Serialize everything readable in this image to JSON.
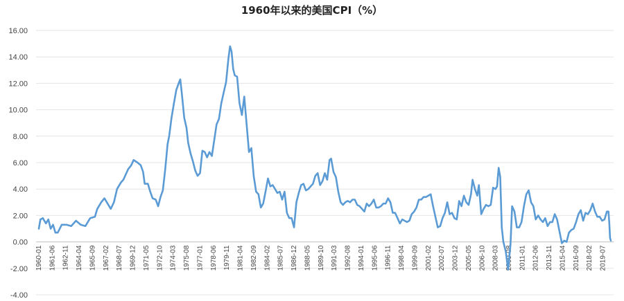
{
  "chart_data": {
    "type": "line",
    "title": "1960年以来的美国CPI（%）",
    "xlabel": "",
    "ylabel": "",
    "ylim": [
      -4,
      16
    ],
    "y_ticks": [
      "-4.00",
      "-2.00",
      "0.00",
      "2.00",
      "4.00",
      "6.00",
      "8.00",
      "10.00",
      "12.00",
      "14.00",
      "16.00"
    ],
    "x_tick_labels": [
      "1960-01",
      "1961-06",
      "1962-11",
      "1964-04",
      "1965-09",
      "1967-02",
      "1968-07",
      "1969-12",
      "1971-05",
      "1972-10",
      "1974-03",
      "1975-08",
      "1977-01",
      "1978-06",
      "1979-11",
      "1981-04",
      "1982-09",
      "1984-02",
      "1985-07",
      "1986-12",
      "1988-05",
      "1989-10",
      "1991-03",
      "1992-08",
      "1994-01",
      "1995-06",
      "1996-11",
      "1998-04",
      "1999-09",
      "2001-02",
      "2002-07",
      "2003-12",
      "2005-05",
      "2006-10",
      "2008-03",
      "2009-08",
      "2011-01",
      "2012-06",
      "2013-11",
      "2015-04",
      "2016-09",
      "2018-02",
      "2019-07"
    ],
    "grid": true,
    "legend": "none",
    "series": [
      {
        "color": "#5b9bd5",
        "points": [
          [
            "1960-01",
            1.0
          ],
          [
            "1960-03",
            1.7
          ],
          [
            "1960-06",
            1.8
          ],
          [
            "1960-10",
            1.4
          ],
          [
            "1961-01",
            1.7
          ],
          [
            "1961-04",
            1.0
          ],
          [
            "1961-07",
            1.3
          ],
          [
            "1961-10",
            0.7
          ],
          [
            "1962-01",
            0.7
          ],
          [
            "1962-06",
            1.3
          ],
          [
            "1962-12",
            1.3
          ],
          [
            "1963-06",
            1.2
          ],
          [
            "1963-12",
            1.6
          ],
          [
            "1964-06",
            1.3
          ],
          [
            "1964-12",
            1.2
          ],
          [
            "1965-06",
            1.8
          ],
          [
            "1965-12",
            1.9
          ],
          [
            "1966-03",
            2.5
          ],
          [
            "1966-08",
            3.0
          ],
          [
            "1966-12",
            3.3
          ],
          [
            "1967-05",
            2.8
          ],
          [
            "1967-08",
            2.5
          ],
          [
            "1967-12",
            3.0
          ],
          [
            "1968-04",
            4.0
          ],
          [
            "1968-09",
            4.5
          ],
          [
            "1968-12",
            4.7
          ],
          [
            "1969-06",
            5.5
          ],
          [
            "1969-10",
            5.8
          ],
          [
            "1970-01",
            6.2
          ],
          [
            "1970-06",
            6.0
          ],
          [
            "1970-10",
            5.8
          ],
          [
            "1971-01",
            5.3
          ],
          [
            "1971-03",
            4.4
          ],
          [
            "1971-07",
            4.4
          ],
          [
            "1971-10",
            3.8
          ],
          [
            "1972-01",
            3.3
          ],
          [
            "1972-05",
            3.2
          ],
          [
            "1972-08",
            2.7
          ],
          [
            "1972-11",
            3.4
          ],
          [
            "1973-02",
            3.9
          ],
          [
            "1973-05",
            5.5
          ],
          [
            "1973-08",
            7.4
          ],
          [
            "1973-10",
            8.0
          ],
          [
            "1974-01",
            9.4
          ],
          [
            "1974-04",
            10.5
          ],
          [
            "1974-07",
            11.5
          ],
          [
            "1974-10",
            12.0
          ],
          [
            "1974-12",
            12.3
          ],
          [
            "1975-02",
            11.2
          ],
          [
            "1975-05",
            9.4
          ],
          [
            "1975-08",
            8.6
          ],
          [
            "1975-10",
            7.5
          ],
          [
            "1976-01",
            6.7
          ],
          [
            "1976-04",
            6.1
          ],
          [
            "1976-07",
            5.4
          ],
          [
            "1976-10",
            5.0
          ],
          [
            "1977-01",
            5.2
          ],
          [
            "1977-04",
            6.9
          ],
          [
            "1977-07",
            6.8
          ],
          [
            "1977-10",
            6.4
          ],
          [
            "1978-01",
            6.8
          ],
          [
            "1978-04",
            6.5
          ],
          [
            "1978-07",
            7.7
          ],
          [
            "1978-10",
            8.9
          ],
          [
            "1979-01",
            9.3
          ],
          [
            "1979-04",
            10.5
          ],
          [
            "1979-07",
            11.3
          ],
          [
            "1979-10",
            12.1
          ],
          [
            "1980-01",
            13.9
          ],
          [
            "1980-03",
            14.8
          ],
          [
            "1980-05",
            14.4
          ],
          [
            "1980-07",
            13.1
          ],
          [
            "1980-09",
            12.6
          ],
          [
            "1980-12",
            12.5
          ],
          [
            "1981-03",
            10.5
          ],
          [
            "1981-06",
            9.6
          ],
          [
            "1981-09",
            11.0
          ],
          [
            "1981-12",
            8.9
          ],
          [
            "1982-03",
            6.8
          ],
          [
            "1982-06",
            7.1
          ],
          [
            "1982-09",
            5.0
          ],
          [
            "1982-12",
            3.8
          ],
          [
            "1983-03",
            3.6
          ],
          [
            "1983-06",
            2.6
          ],
          [
            "1983-09",
            2.9
          ],
          [
            "1983-12",
            3.8
          ],
          [
            "1984-03",
            4.8
          ],
          [
            "1984-06",
            4.2
          ],
          [
            "1984-09",
            4.3
          ],
          [
            "1984-12",
            4.0
          ],
          [
            "1985-03",
            3.7
          ],
          [
            "1985-06",
            3.8
          ],
          [
            "1985-09",
            3.2
          ],
          [
            "1985-12",
            3.8
          ],
          [
            "1986-03",
            2.2
          ],
          [
            "1986-06",
            1.8
          ],
          [
            "1986-09",
            1.8
          ],
          [
            "1986-12",
            1.1
          ],
          [
            "1987-03",
            3.0
          ],
          [
            "1987-06",
            3.7
          ],
          [
            "1987-09",
            4.3
          ],
          [
            "1987-12",
            4.4
          ],
          [
            "1988-03",
            3.9
          ],
          [
            "1988-06",
            4.0
          ],
          [
            "1988-09",
            4.2
          ],
          [
            "1988-12",
            4.4
          ],
          [
            "1989-03",
            5.0
          ],
          [
            "1989-06",
            5.2
          ],
          [
            "1989-09",
            4.3
          ],
          [
            "1989-12",
            4.6
          ],
          [
            "1990-03",
            5.2
          ],
          [
            "1990-06",
            4.7
          ],
          [
            "1990-09",
            6.2
          ],
          [
            "1990-11",
            6.3
          ],
          [
            "1991-02",
            5.3
          ],
          [
            "1991-05",
            4.9
          ],
          [
            "1991-08",
            3.8
          ],
          [
            "1991-11",
            3.0
          ],
          [
            "1992-02",
            2.8
          ],
          [
            "1992-05",
            3.0
          ],
          [
            "1992-08",
            3.1
          ],
          [
            "1992-11",
            3.0
          ],
          [
            "1993-02",
            3.2
          ],
          [
            "1993-05",
            3.2
          ],
          [
            "1993-08",
            2.8
          ],
          [
            "1993-11",
            2.7
          ],
          [
            "1994-02",
            2.5
          ],
          [
            "1994-05",
            2.3
          ],
          [
            "1994-08",
            2.9
          ],
          [
            "1994-11",
            2.7
          ],
          [
            "1995-02",
            2.9
          ],
          [
            "1995-05",
            3.2
          ],
          [
            "1995-08",
            2.6
          ],
          [
            "1995-11",
            2.6
          ],
          [
            "1996-02",
            2.7
          ],
          [
            "1996-05",
            2.9
          ],
          [
            "1996-08",
            2.9
          ],
          [
            "1996-11",
            3.3
          ],
          [
            "1997-02",
            3.0
          ],
          [
            "1997-05",
            2.2
          ],
          [
            "1997-08",
            2.2
          ],
          [
            "1997-11",
            1.8
          ],
          [
            "1998-02",
            1.4
          ],
          [
            "1998-05",
            1.7
          ],
          [
            "1998-08",
            1.6
          ],
          [
            "1998-11",
            1.5
          ],
          [
            "1999-02",
            1.6
          ],
          [
            "1999-05",
            2.1
          ],
          [
            "1999-08",
            2.3
          ],
          [
            "1999-11",
            2.6
          ],
          [
            "2000-02",
            3.2
          ],
          [
            "2000-05",
            3.2
          ],
          [
            "2000-08",
            3.4
          ],
          [
            "2000-11",
            3.4
          ],
          [
            "2001-02",
            3.5
          ],
          [
            "2001-05",
            3.6
          ],
          [
            "2001-08",
            2.7
          ],
          [
            "2001-11",
            1.9
          ],
          [
            "2002-02",
            1.1
          ],
          [
            "2002-05",
            1.2
          ],
          [
            "2002-08",
            1.8
          ],
          [
            "2002-11",
            2.2
          ],
          [
            "2003-02",
            3.0
          ],
          [
            "2003-05",
            2.1
          ],
          [
            "2003-08",
            2.2
          ],
          [
            "2003-11",
            1.8
          ],
          [
            "2004-02",
            1.7
          ],
          [
            "2004-05",
            3.1
          ],
          [
            "2004-08",
            2.7
          ],
          [
            "2004-11",
            3.5
          ],
          [
            "2005-02",
            3.0
          ],
          [
            "2005-05",
            2.8
          ],
          [
            "2005-08",
            3.6
          ],
          [
            "2005-10",
            4.7
          ],
          [
            "2006-01",
            4.0
          ],
          [
            "2006-04",
            3.5
          ],
          [
            "2006-06",
            4.3
          ],
          [
            "2006-09",
            2.1
          ],
          [
            "2006-12",
            2.5
          ],
          [
            "2007-03",
            2.8
          ],
          [
            "2007-06",
            2.7
          ],
          [
            "2007-09",
            2.8
          ],
          [
            "2007-12",
            4.1
          ],
          [
            "2008-03",
            4.0
          ],
          [
            "2008-05",
            4.2
          ],
          [
            "2008-07",
            5.6
          ],
          [
            "2008-09",
            4.9
          ],
          [
            "2008-11",
            1.1
          ],
          [
            "2009-01",
            0.0
          ],
          [
            "2009-04",
            -0.7
          ],
          [
            "2009-07",
            -2.1
          ],
          [
            "2009-10",
            -0.2
          ],
          [
            "2009-12",
            2.7
          ],
          [
            "2010-03",
            2.3
          ],
          [
            "2010-06",
            1.1
          ],
          [
            "2010-09",
            1.1
          ],
          [
            "2010-12",
            1.5
          ],
          [
            "2011-03",
            2.7
          ],
          [
            "2011-06",
            3.6
          ],
          [
            "2011-09",
            3.9
          ],
          [
            "2011-12",
            3.0
          ],
          [
            "2012-03",
            2.7
          ],
          [
            "2012-06",
            1.7
          ],
          [
            "2012-09",
            2.0
          ],
          [
            "2012-12",
            1.7
          ],
          [
            "2013-03",
            1.5
          ],
          [
            "2013-06",
            1.8
          ],
          [
            "2013-09",
            1.2
          ],
          [
            "2013-12",
            1.5
          ],
          [
            "2014-03",
            1.5
          ],
          [
            "2014-06",
            2.1
          ],
          [
            "2014-09",
            1.7
          ],
          [
            "2014-12",
            0.8
          ],
          [
            "2015-03",
            -0.1
          ],
          [
            "2015-06",
            0.1
          ],
          [
            "2015-09",
            0.0
          ],
          [
            "2015-12",
            0.7
          ],
          [
            "2016-03",
            0.9
          ],
          [
            "2016-06",
            1.0
          ],
          [
            "2016-09",
            1.5
          ],
          [
            "2016-12",
            2.1
          ],
          [
            "2017-03",
            2.4
          ],
          [
            "2017-06",
            1.6
          ],
          [
            "2017-09",
            2.2
          ],
          [
            "2017-12",
            2.1
          ],
          [
            "2018-03",
            2.4
          ],
          [
            "2018-06",
            2.9
          ],
          [
            "2018-09",
            2.3
          ],
          [
            "2018-12",
            1.9
          ],
          [
            "2019-03",
            1.9
          ],
          [
            "2019-06",
            1.6
          ],
          [
            "2019-09",
            1.7
          ],
          [
            "2019-12",
            2.3
          ],
          [
            "2020-02",
            2.3
          ],
          [
            "2020-03",
            1.5
          ],
          [
            "2020-04",
            0.3
          ],
          [
            "2020-05",
            0.1
          ]
        ]
      }
    ]
  }
}
